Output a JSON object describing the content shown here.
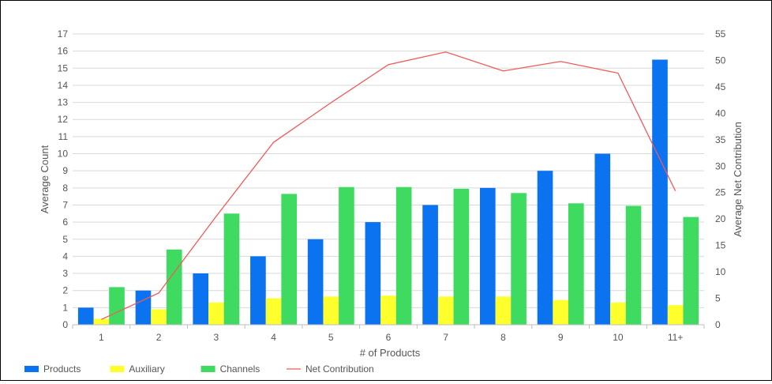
{
  "chart_data": {
    "type": "bar",
    "categories": [
      "1",
      "2",
      "3",
      "4",
      "5",
      "6",
      "7",
      "8",
      "9",
      "10",
      "11+"
    ],
    "xlabel": "# of Products",
    "ylabel": "Average Count",
    "y2label": "Average Net Contribution",
    "ylim": [
      0,
      17
    ],
    "y2lim": [
      0,
      55
    ],
    "yticks": [
      "0",
      "1",
      "2",
      "3",
      "4",
      "5",
      "6",
      "7",
      "8",
      "9",
      "10",
      "11",
      "12",
      "13",
      "14",
      "15",
      "16",
      "17"
    ],
    "y2ticks": [
      "0",
      "5",
      "10",
      "15",
      "20",
      "25",
      "30",
      "35",
      "40",
      "45",
      "50",
      "55"
    ],
    "grid": true,
    "legend_position": "bottom-left",
    "series": [
      {
        "name": "Products",
        "type": "bar",
        "axis": "left",
        "color": "#0b72f0",
        "values": [
          1.0,
          2.0,
          3.0,
          4.0,
          5.0,
          6.0,
          7.0,
          8.0,
          9.0,
          10.0,
          15.5
        ]
      },
      {
        "name": "Auxiliary",
        "type": "bar",
        "axis": "left",
        "color": "#ffff2e",
        "values": [
          0.35,
          0.9,
          1.3,
          1.55,
          1.65,
          1.7,
          1.65,
          1.65,
          1.45,
          1.3,
          1.15
        ]
      },
      {
        "name": "Channels",
        "type": "bar",
        "axis": "left",
        "color": "#3fdb61",
        "values": [
          2.2,
          4.4,
          6.5,
          7.65,
          8.05,
          8.05,
          7.95,
          7.7,
          7.1,
          6.95,
          6.3
        ]
      },
      {
        "name": "Net Contribution",
        "type": "line",
        "axis": "right",
        "color": "#f05a5a",
        "values": [
          1.0,
          6.0,
          20.5,
          34.5,
          42.0,
          49.2,
          51.6,
          48.0,
          49.8,
          47.6,
          25.3
        ]
      }
    ]
  }
}
